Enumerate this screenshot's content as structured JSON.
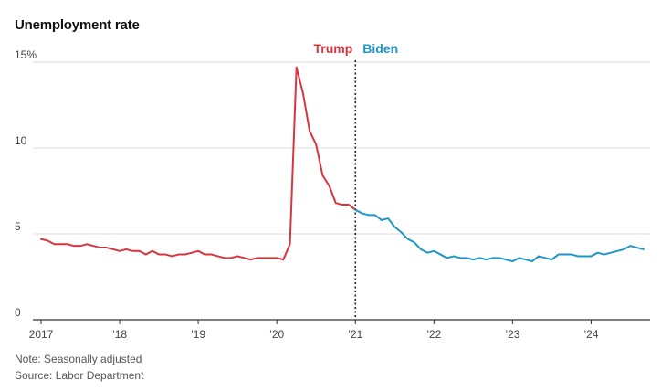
{
  "chart_data": {
    "type": "line",
    "title": "Unemployment rate",
    "xlabel": "",
    "ylabel": "",
    "ylim": [
      0,
      15
    ],
    "xlim": [
      2017,
      2024.75
    ],
    "y_ticks": [
      0,
      5,
      10,
      15
    ],
    "y_tick_labels": [
      "0",
      "5",
      "10",
      "15%"
    ],
    "x_ticks": [
      2017,
      2018,
      2019,
      2020,
      2021,
      2022,
      2023,
      2024
    ],
    "x_tick_labels": [
      "2017",
      "’18",
      "’19",
      "’20",
      "’21",
      "’22",
      "’23",
      "’24"
    ],
    "grid": true,
    "divider_x": 2021.0,
    "annotations": {
      "left": "Trump",
      "right": "Biden"
    },
    "colors": {
      "trump": "#d8363f",
      "biden": "#1d96c8",
      "grid": "#dddddd",
      "axis": "#333333"
    },
    "series": [
      {
        "name": "Trump",
        "color": "#d8363f",
        "points": [
          [
            2017.0,
            4.7
          ],
          [
            2017.083,
            4.6
          ],
          [
            2017.167,
            4.4
          ],
          [
            2017.25,
            4.4
          ],
          [
            2017.333,
            4.4
          ],
          [
            2017.417,
            4.3
          ],
          [
            2017.5,
            4.3
          ],
          [
            2017.583,
            4.4
          ],
          [
            2017.667,
            4.3
          ],
          [
            2017.75,
            4.2
          ],
          [
            2017.833,
            4.2
          ],
          [
            2017.917,
            4.1
          ],
          [
            2018.0,
            4.0
          ],
          [
            2018.083,
            4.1
          ],
          [
            2018.167,
            4.0
          ],
          [
            2018.25,
            4.0
          ],
          [
            2018.333,
            3.8
          ],
          [
            2018.417,
            4.0
          ],
          [
            2018.5,
            3.8
          ],
          [
            2018.583,
            3.8
          ],
          [
            2018.667,
            3.7
          ],
          [
            2018.75,
            3.8
          ],
          [
            2018.833,
            3.8
          ],
          [
            2018.917,
            3.9
          ],
          [
            2019.0,
            4.0
          ],
          [
            2019.083,
            3.8
          ],
          [
            2019.167,
            3.8
          ],
          [
            2019.25,
            3.7
          ],
          [
            2019.333,
            3.6
          ],
          [
            2019.417,
            3.6
          ],
          [
            2019.5,
            3.7
          ],
          [
            2019.583,
            3.6
          ],
          [
            2019.667,
            3.5
          ],
          [
            2019.75,
            3.6
          ],
          [
            2019.833,
            3.6
          ],
          [
            2019.917,
            3.6
          ],
          [
            2020.0,
            3.6
          ],
          [
            2020.083,
            3.5
          ],
          [
            2020.167,
            4.4
          ],
          [
            2020.25,
            14.7
          ],
          [
            2020.333,
            13.2
          ],
          [
            2020.417,
            11.0
          ],
          [
            2020.5,
            10.2
          ],
          [
            2020.583,
            8.4
          ],
          [
            2020.667,
            7.8
          ],
          [
            2020.75,
            6.8
          ],
          [
            2020.833,
            6.7
          ],
          [
            2020.917,
            6.7
          ],
          [
            2021.0,
            6.4
          ]
        ]
      },
      {
        "name": "Biden",
        "color": "#1d96c8",
        "points": [
          [
            2021.0,
            6.4
          ],
          [
            2021.083,
            6.2
          ],
          [
            2021.167,
            6.1
          ],
          [
            2021.25,
            6.1
          ],
          [
            2021.333,
            5.8
          ],
          [
            2021.417,
            5.9
          ],
          [
            2021.5,
            5.4
          ],
          [
            2021.583,
            5.1
          ],
          [
            2021.667,
            4.7
          ],
          [
            2021.75,
            4.5
          ],
          [
            2021.833,
            4.1
          ],
          [
            2021.917,
            3.9
          ],
          [
            2022.0,
            4.0
          ],
          [
            2022.083,
            3.8
          ],
          [
            2022.167,
            3.6
          ],
          [
            2022.25,
            3.7
          ],
          [
            2022.333,
            3.6
          ],
          [
            2022.417,
            3.6
          ],
          [
            2022.5,
            3.5
          ],
          [
            2022.583,
            3.6
          ],
          [
            2022.667,
            3.5
          ],
          [
            2022.75,
            3.6
          ],
          [
            2022.833,
            3.6
          ],
          [
            2022.917,
            3.5
          ],
          [
            2023.0,
            3.4
          ],
          [
            2023.083,
            3.6
          ],
          [
            2023.167,
            3.5
          ],
          [
            2023.25,
            3.4
          ],
          [
            2023.333,
            3.7
          ],
          [
            2023.417,
            3.6
          ],
          [
            2023.5,
            3.5
          ],
          [
            2023.583,
            3.8
          ],
          [
            2023.667,
            3.8
          ],
          [
            2023.75,
            3.8
          ],
          [
            2023.833,
            3.7
          ],
          [
            2023.917,
            3.7
          ],
          [
            2024.0,
            3.7
          ],
          [
            2024.083,
            3.9
          ],
          [
            2024.167,
            3.8
          ],
          [
            2024.25,
            3.9
          ],
          [
            2024.333,
            4.0
          ],
          [
            2024.417,
            4.1
          ],
          [
            2024.5,
            4.3
          ],
          [
            2024.583,
            4.2
          ],
          [
            2024.667,
            4.1
          ]
        ]
      }
    ]
  },
  "footer": {
    "note": "Note: Seasonally adjusted",
    "source": "Source: Labor Department"
  }
}
